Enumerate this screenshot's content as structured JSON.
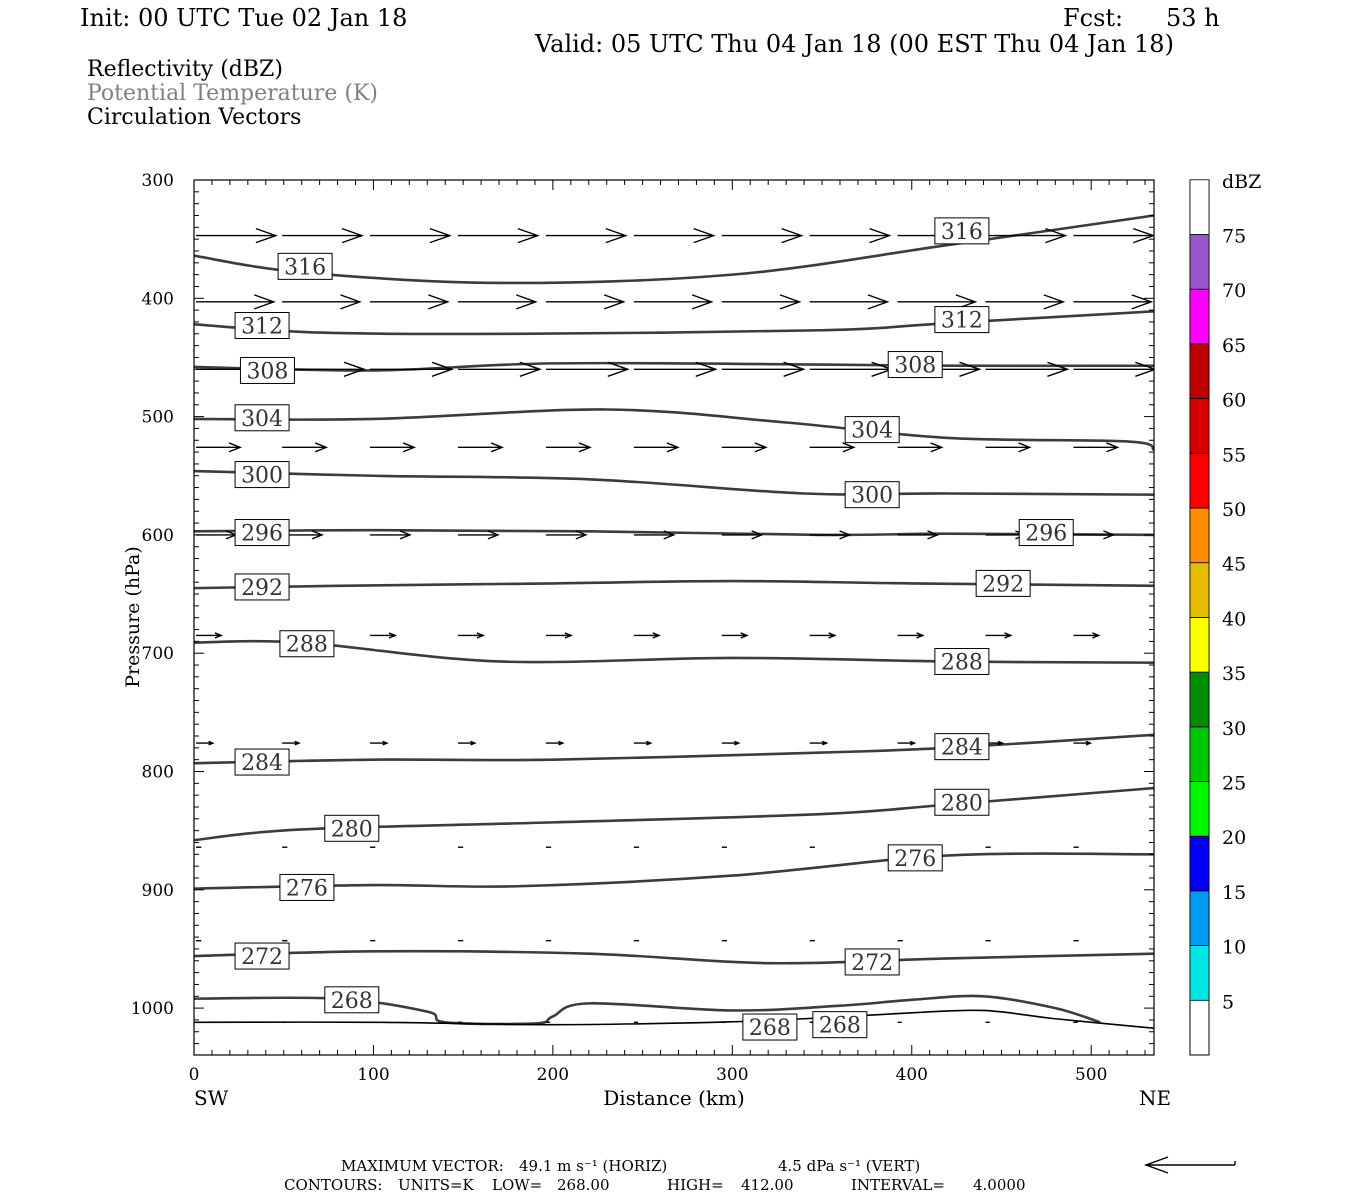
{
  "header": {
    "init": "Init: 00 UTC Tue 02 Jan 18",
    "fcst_label": "Fcst:",
    "fcst_value": "53 h",
    "valid": "Valid: 05 UTC Thu 04 Jan 18 (00 EST Thu 04 Jan 18)"
  },
  "fields": {
    "f1": "Reflectivity (dBZ)",
    "f2": "Potential Temperature (K)",
    "f3": "Circulation Vectors"
  },
  "footer": {
    "line1_label": "MAXIMUM VECTOR:",
    "line1_horiz": "49.1 m s⁻¹ (HORIZ)",
    "line1_vert": "4.5 dPa s⁻¹ (VERT)",
    "line2_label": "CONTOURS:",
    "line2_units": "UNITS=K",
    "line2_low": "LOW=",
    "line2_low_value": "268.00",
    "line2_high": "HIGH=",
    "line2_high_value": "412.00",
    "line2_interval": "INTERVAL=",
    "line2_interval_value": "4.0000"
  },
  "chart_data": {
    "type": "line",
    "xlabel": "Distance (km)",
    "ylabel": "Pressure (hPa)",
    "x_end_labels": [
      "SW",
      "NE"
    ],
    "xlim": [
      0,
      535
    ],
    "ylim": [
      1037,
      300
    ],
    "y_reversed": true,
    "x_ticks": [
      0,
      100,
      200,
      300,
      400,
      500
    ],
    "y_ticks": [
      300,
      400,
      500,
      600,
      700,
      800,
      900,
      1000
    ],
    "units": "K",
    "series": [
      {
        "level": 316,
        "points": [
          [
            0,
            364
          ],
          [
            60,
            378
          ],
          [
            170,
            387
          ],
          [
            300,
            380
          ],
          [
            420,
            355
          ],
          [
            535,
            330
          ]
        ],
        "labels": [
          [
            48,
            373
          ],
          [
            414,
            343
          ]
        ]
      },
      {
        "level": 312,
        "points": [
          [
            0,
            422
          ],
          [
            70,
            429
          ],
          [
            180,
            430
          ],
          [
            350,
            427
          ],
          [
            420,
            421
          ],
          [
            535,
            411
          ]
        ],
        "labels": [
          [
            24,
            423
          ],
          [
            414,
            418
          ]
        ]
      },
      {
        "level": 308,
        "points": [
          [
            0,
            458
          ],
          [
            100,
            461
          ],
          [
            200,
            455
          ],
          [
            350,
            456
          ],
          [
            420,
            457
          ],
          [
            535,
            457
          ]
        ],
        "labels": [
          [
            27,
            461
          ],
          [
            388,
            456
          ]
        ]
      },
      {
        "level": 304,
        "points": [
          [
            0,
            502
          ],
          [
            100,
            502
          ],
          [
            230,
            494
          ],
          [
            330,
            505
          ],
          [
            420,
            518
          ],
          [
            520,
            521
          ],
          [
            535,
            528
          ]
        ],
        "labels": [
          [
            24,
            501
          ],
          [
            364,
            511
          ]
        ]
      },
      {
        "level": 300,
        "points": [
          [
            0,
            546
          ],
          [
            100,
            550
          ],
          [
            220,
            553
          ],
          [
            340,
            565
          ],
          [
            420,
            565
          ],
          [
            535,
            566
          ]
        ],
        "labels": [
          [
            24,
            549
          ],
          [
            364,
            566
          ]
        ]
      },
      {
        "level": 296,
        "points": [
          [
            0,
            597
          ],
          [
            100,
            596
          ],
          [
            220,
            597
          ],
          [
            350,
            600
          ],
          [
            420,
            599
          ],
          [
            535,
            600
          ]
        ],
        "labels": [
          [
            24,
            598
          ],
          [
            461,
            598
          ]
        ]
      },
      {
        "level": 292,
        "points": [
          [
            0,
            645
          ],
          [
            80,
            643
          ],
          [
            200,
            641
          ],
          [
            300,
            639
          ],
          [
            400,
            641
          ],
          [
            535,
            643
          ]
        ],
        "labels": [
          [
            24,
            644
          ],
          [
            437,
            641
          ]
        ]
      },
      {
        "level": 288,
        "points": [
          [
            0,
            691
          ],
          [
            60,
            691
          ],
          [
            170,
            707
          ],
          [
            300,
            704
          ],
          [
            420,
            707
          ],
          [
            535,
            708
          ]
        ],
        "labels": [
          [
            49,
            692
          ],
          [
            414,
            707
          ]
        ]
      },
      {
        "level": 284,
        "points": [
          [
            0,
            793
          ],
          [
            100,
            790
          ],
          [
            200,
            790
          ],
          [
            350,
            784
          ],
          [
            420,
            780
          ],
          [
            535,
            769
          ]
        ],
        "labels": [
          [
            24,
            792
          ],
          [
            414,
            779
          ]
        ]
      },
      {
        "level": 280,
        "points": [
          [
            0,
            858
          ],
          [
            60,
            849
          ],
          [
            200,
            843
          ],
          [
            350,
            836
          ],
          [
            420,
            828
          ],
          [
            535,
            814
          ]
        ],
        "labels": [
          [
            74,
            848
          ],
          [
            414,
            826
          ]
        ]
      },
      {
        "level": 276,
        "points": [
          [
            0,
            899
          ],
          [
            100,
            896
          ],
          [
            180,
            897
          ],
          [
            300,
            888
          ],
          [
            420,
            871
          ],
          [
            535,
            870
          ]
        ],
        "labels": [
          [
            49,
            898
          ],
          [
            388,
            873
          ]
        ]
      },
      {
        "level": 272,
        "points": [
          [
            0,
            956
          ],
          [
            100,
            952
          ],
          [
            220,
            954
          ],
          [
            320,
            962
          ],
          [
            420,
            958
          ],
          [
            535,
            954
          ]
        ],
        "labels": [
          [
            24,
            956
          ],
          [
            364,
            961
          ]
        ]
      },
      {
        "level": 268,
        "points": [
          [
            0,
            992
          ],
          [
            80,
            992
          ],
          [
            130,
            1003
          ],
          [
            140,
            1012
          ],
          [
            190,
            1013
          ],
          [
            200,
            1007
          ],
          [
            220,
            996
          ],
          [
            300,
            1002
          ],
          [
            360,
            998
          ],
          [
            400,
            993
          ],
          [
            440,
            990
          ],
          [
            480,
            1000
          ],
          [
            505,
            1012
          ]
        ],
        "labels": [
          [
            74,
            993
          ],
          [
            307,
            1016
          ],
          [
            346,
            1014
          ]
        ]
      }
    ],
    "ground_line": {
      "points": [
        [
          0,
          1012
        ],
        [
          100,
          1012
        ],
        [
          200,
          1014
        ],
        [
          290,
          1012
        ],
        [
          340,
          1009
        ],
        [
          400,
          1004
        ],
        [
          440,
          1002
        ],
        [
          480,
          1009
        ],
        [
          535,
          1017
        ]
      ]
    },
    "vectors": [
      {
        "p": 347,
        "u": 3.8,
        "w": 0
      },
      {
        "p": 403,
        "u": 3.7,
        "w": 0
      },
      {
        "p": 460,
        "u": 3.9,
        "w": 0
      },
      {
        "p": 526,
        "u": 2.1,
        "w": 0
      },
      {
        "p": 600,
        "u": 1.9,
        "w": 0
      },
      {
        "p": 685,
        "u": 1.2,
        "w": 0
      },
      {
        "p": 776,
        "u": 0.8,
        "w": 0
      },
      {
        "p": 864,
        "u": 0.25,
        "w": 0
      },
      {
        "p": 943,
        "u": 0.25,
        "w": 0
      },
      {
        "p": 1012,
        "u": 0.2,
        "w": 0
      }
    ],
    "colorbar": {
      "units": "dBZ",
      "labels": [
        5,
        10,
        15,
        20,
        25,
        30,
        35,
        40,
        45,
        50,
        55,
        60,
        65,
        70,
        75
      ],
      "colors": [
        "#00e5e5",
        "#009af5",
        "#0000f5",
        "#00f500",
        "#00c800",
        "#008c00",
        "#ffff00",
        "#e6bc00",
        "#ff8c00",
        "#ff0000",
        "#d60000",
        "#bd0000",
        "#ff00ff",
        "#9955c9",
        "#ffffff"
      ]
    },
    "max_vector_arrow_icon": "left-arrow-icon"
  }
}
